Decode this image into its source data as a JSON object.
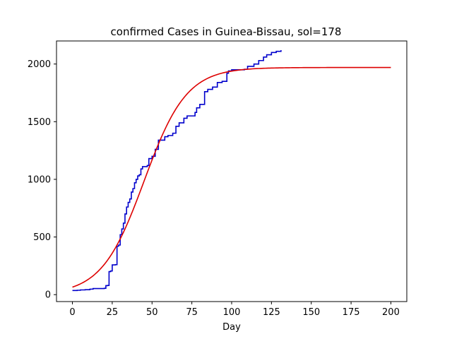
{
  "chart_data": {
    "type": "line",
    "title": "confirmed Cases in Guinea-Bissau, sol=178",
    "xlabel": "Day",
    "ylabel": "",
    "xlim": [
      -10,
      210
    ],
    "ylim": [
      -60,
      2200
    ],
    "x_ticks": [
      0,
      25,
      50,
      75,
      100,
      125,
      150,
      175,
      200
    ],
    "y_ticks": [
      0,
      500,
      1000,
      1500,
      2000
    ],
    "grid": false,
    "series": [
      {
        "color": "#0000cc",
        "step": true,
        "points": [
          [
            0,
            36
          ],
          [
            3,
            38
          ],
          [
            5,
            41
          ],
          [
            8,
            43
          ],
          [
            11,
            48
          ],
          [
            13,
            53
          ],
          [
            20,
            55
          ],
          [
            21,
            78
          ],
          [
            22,
            80
          ],
          [
            23,
            200
          ],
          [
            24,
            205
          ],
          [
            25,
            258
          ],
          [
            27,
            260
          ],
          [
            28,
            420
          ],
          [
            29,
            430
          ],
          [
            30,
            520
          ],
          [
            31,
            570
          ],
          [
            32,
            620
          ],
          [
            33,
            700
          ],
          [
            34,
            760
          ],
          [
            35,
            800
          ],
          [
            36,
            830
          ],
          [
            37,
            890
          ],
          [
            38,
            920
          ],
          [
            39,
            970
          ],
          [
            40,
            1000
          ],
          [
            41,
            1030
          ],
          [
            42,
            1040
          ],
          [
            43,
            1090
          ],
          [
            44,
            1110
          ],
          [
            47,
            1120
          ],
          [
            48,
            1180
          ],
          [
            50,
            1200
          ],
          [
            52,
            1260
          ],
          [
            54,
            1340
          ],
          [
            58,
            1370
          ],
          [
            60,
            1380
          ],
          [
            63,
            1400
          ],
          [
            65,
            1460
          ],
          [
            67,
            1490
          ],
          [
            70,
            1530
          ],
          [
            72,
            1550
          ],
          [
            77,
            1580
          ],
          [
            78,
            1620
          ],
          [
            80,
            1650
          ],
          [
            83,
            1760
          ],
          [
            85,
            1780
          ],
          [
            88,
            1800
          ],
          [
            91,
            1840
          ],
          [
            94,
            1850
          ],
          [
            97,
            1920
          ],
          [
            98,
            1940
          ],
          [
            100,
            1950
          ],
          [
            108,
            1955
          ],
          [
            110,
            1980
          ],
          [
            114,
            2000
          ],
          [
            117,
            2030
          ],
          [
            120,
            2060
          ],
          [
            122,
            2080
          ],
          [
            125,
            2100
          ],
          [
            128,
            2110
          ],
          [
            131,
            2120
          ]
        ]
      },
      {
        "color": "#dd0000",
        "model": "logistic",
        "K": 1970,
        "r": 0.075,
        "t0": 45,
        "x_range": [
          0,
          200
        ]
      }
    ]
  }
}
